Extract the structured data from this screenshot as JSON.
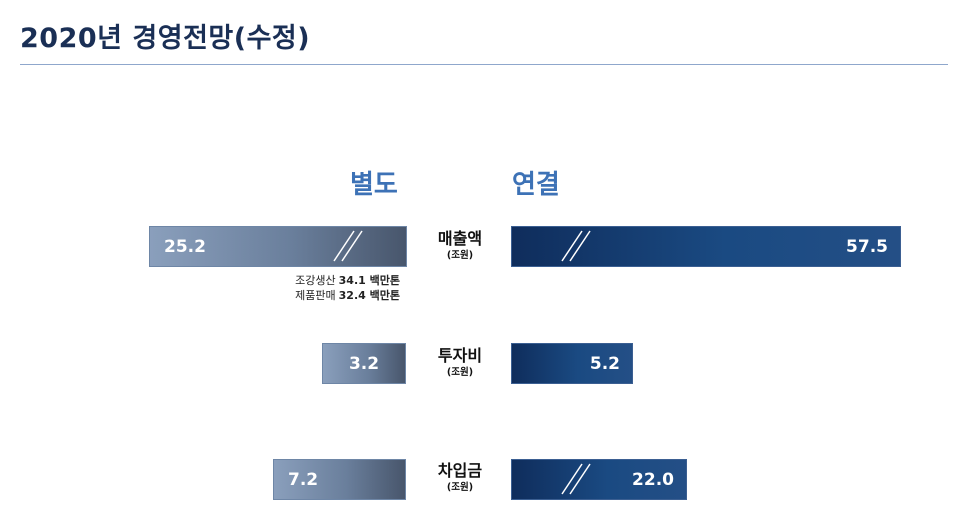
{
  "title": "2020년 경영전망(수정)",
  "chart_data": {
    "type": "bar",
    "orientation": "horizontal",
    "series": [
      {
        "name": "별도",
        "values": [
          25.2,
          3.2,
          7.2
        ]
      },
      {
        "name": "연결",
        "values": [
          57.5,
          5.2,
          22.0
        ]
      }
    ],
    "categories": [
      "매출액",
      "투자비",
      "차입금"
    ],
    "category_unit": "(조원)",
    "value_labels": {
      "separate": [
        "25.2",
        "3.2",
        "7.2"
      ],
      "consolidated": [
        "57.5",
        "5.2",
        "22.0"
      ]
    },
    "broken_axis": {
      "separate": [
        true,
        false,
        false
      ],
      "consolidated": [
        true,
        false,
        true
      ]
    },
    "notes": [
      {
        "label": "조강생산",
        "value": "34.1 백만톤"
      },
      {
        "label": "제품판매",
        "value": "32.4 백만톤"
      }
    ]
  },
  "colors": {
    "title": "#1a2f55",
    "header": "#3d72b6",
    "separate_bar": "#6a7f9c",
    "consolidated_bar": "#1a4a82"
  }
}
